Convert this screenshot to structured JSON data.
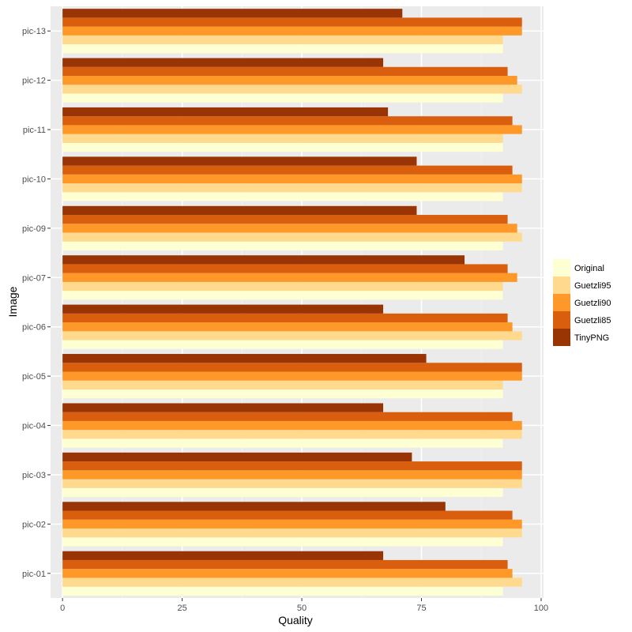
{
  "chart_data": {
    "type": "bar",
    "orientation": "horizontal",
    "categories": [
      "pic-01",
      "pic-02",
      "pic-03",
      "pic-04",
      "pic-05",
      "pic-06",
      "pic-07",
      "pic-09",
      "pic-10",
      "pic-11",
      "pic-12",
      "pic-13"
    ],
    "series": [
      {
        "name": "Original",
        "color": "#ffffd4",
        "values": [
          92,
          92,
          92,
          92,
          92,
          92,
          92,
          92,
          92,
          92,
          92,
          92
        ]
      },
      {
        "name": "Guetzli95",
        "color": "#fed98e",
        "values": [
          96,
          96,
          96,
          96,
          92,
          96,
          92,
          96,
          96,
          92,
          96,
          92
        ]
      },
      {
        "name": "Guetzli90",
        "color": "#fe9929",
        "values": [
          94,
          96,
          96,
          96,
          96,
          94,
          95,
          95,
          96,
          96,
          95,
          96
        ]
      },
      {
        "name": "Guetzli85",
        "color": "#d95f0e",
        "values": [
          93,
          94,
          96,
          94,
          96,
          93,
          93,
          93,
          94,
          94,
          93,
          96
        ]
      },
      {
        "name": "TinyPNG",
        "color": "#993404",
        "values": [
          67,
          80,
          73,
          67,
          76,
          67,
          84,
          74,
          74,
          68,
          67,
          71
        ]
      }
    ],
    "xlabel": "Quality",
    "ylabel": "Image",
    "xlim": [
      -2.5,
      100.5
    ],
    "xticks": [
      0,
      25,
      50,
      75,
      100
    ],
    "tick_labels": [
      "0",
      "25",
      "50",
      "75",
      "100"
    ],
    "grid": true,
    "legend_position": "right",
    "legend_order": [
      "Original",
      "Guetzli95",
      "Guetzli90",
      "Guetzli85",
      "TinyPNG"
    ]
  }
}
